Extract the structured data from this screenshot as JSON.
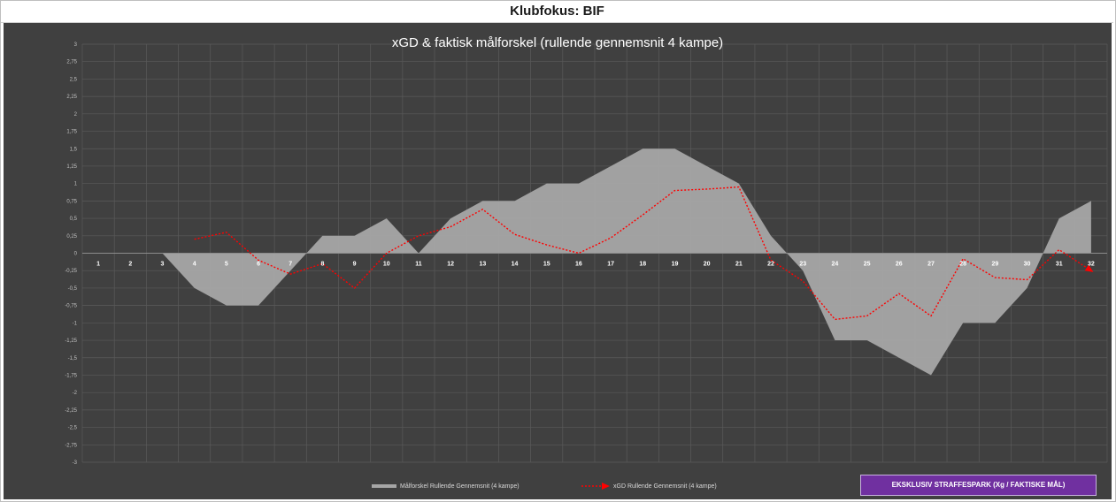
{
  "header": {
    "title": "Klubfokus:  BIF"
  },
  "badge": {
    "label": "EKSKLUSIV STRAFFESPARK (Xg / FAKTISKE MÅL)"
  },
  "colors": {
    "chart_bg": "#404040",
    "area_fill": "#a6a6a6",
    "xgd_line": "#ff0000",
    "grid": "#5a5a5a",
    "badge": "#7030a0"
  },
  "chart_data": {
    "type": "area",
    "title": "xGD & faktisk målforskel (rullende gennemsnit 4 kampe)",
    "xlabel": "",
    "ylabel": "",
    "ylim": [
      -3,
      3
    ],
    "ytick_step": 0.25,
    "yticks": [
      "3",
      "2,75",
      "2,5",
      "2,25",
      "2",
      "1,75",
      "1,5",
      "1,25",
      "1",
      "0,75",
      "0,5",
      "0,25",
      "0",
      "-0,25",
      "-0,5",
      "-0,75",
      "-1",
      "-1,25",
      "-1,5",
      "-1,75",
      "-2",
      "-2,25",
      "-2,5",
      "-2,75",
      "-3"
    ],
    "categories": [
      "1",
      "2",
      "3",
      "4",
      "5",
      "6",
      "7",
      "8",
      "9",
      "10",
      "11",
      "12",
      "13",
      "14",
      "15",
      "16",
      "17",
      "18",
      "19",
      "20",
      "21",
      "22",
      "23",
      "24",
      "25",
      "26",
      "27",
      "28",
      "29",
      "30",
      "31",
      "32"
    ],
    "grid": true,
    "legend_position": "bottom",
    "series": [
      {
        "name": "Målforskel Rullende Gennemsnit (4 kampe)",
        "type": "area",
        "values": [
          0,
          0,
          0,
          -0.5,
          -0.75,
          -0.75,
          -0.25,
          0.25,
          0.25,
          0.5,
          0,
          0.5,
          0.75,
          0.75,
          1,
          1,
          1.25,
          1.5,
          1.5,
          1.25,
          1,
          0.25,
          -0.25,
          -1.25,
          -1.25,
          -1.5,
          -1.75,
          -1,
          -1,
          -0.5,
          0.5,
          0.75
        ]
      },
      {
        "name": "xGD Rullende Gennemsnit (4 kampe)",
        "type": "line",
        "values": [
          null,
          null,
          null,
          0.2,
          0.3,
          -0.1,
          -0.3,
          -0.15,
          -0.5,
          0,
          0.25,
          0.38,
          0.63,
          0.27,
          0.12,
          0,
          0.22,
          0.55,
          0.9,
          0.92,
          0.95,
          -0.1,
          -0.4,
          -0.95,
          -0.9,
          -0.58,
          -0.9,
          -0.08,
          -0.35,
          -0.38,
          0.05,
          -0.25
        ]
      }
    ]
  }
}
